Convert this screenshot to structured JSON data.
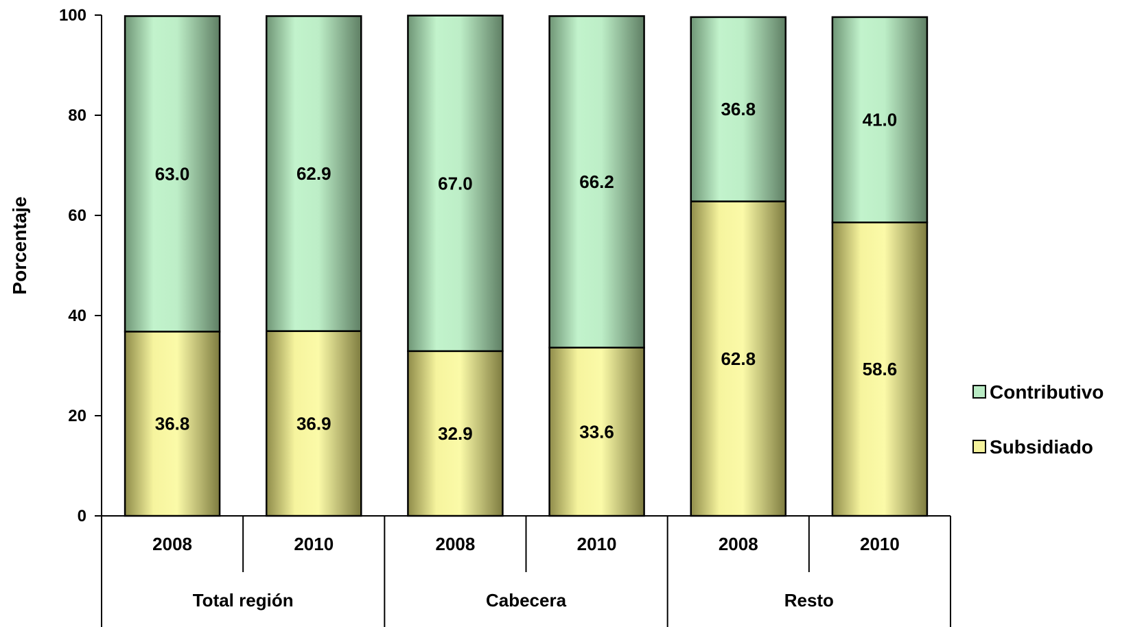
{
  "chart_data": {
    "type": "bar",
    "stacked": true,
    "ylabel": "Porcentaje",
    "ylim": [
      0,
      100
    ],
    "yticks": [
      0,
      20,
      40,
      60,
      80,
      100
    ],
    "grid": false,
    "legend_position": "right",
    "groups": [
      {
        "name": "Total región",
        "categories": [
          "2008",
          "2010"
        ]
      },
      {
        "name": "Cabecera",
        "categories": [
          "2008",
          "2010"
        ]
      },
      {
        "name": "Resto",
        "categories": [
          "2008",
          "2010"
        ]
      }
    ],
    "categories": [
      "2008",
      "2010",
      "2008",
      "2010",
      "2008",
      "2010"
    ],
    "series": [
      {
        "name": "Subsidiado",
        "values": [
          36.8,
          36.9,
          32.9,
          33.6,
          62.8,
          58.6
        ],
        "labels": [
          "36.8",
          "36.9",
          "32.9",
          "33.6",
          "62.8",
          "58.6"
        ],
        "color": "#f4f29c"
      },
      {
        "name": "Contributivo",
        "values": [
          63.0,
          62.9,
          67.0,
          66.2,
          36.8,
          41.0
        ],
        "labels": [
          "63.0",
          "62.9",
          "67.0",
          "66.2",
          "36.8",
          "41.0"
        ],
        "color": "#b9ebc4"
      }
    ],
    "legend_order": [
      "Contributivo",
      "Subsidiado"
    ]
  }
}
